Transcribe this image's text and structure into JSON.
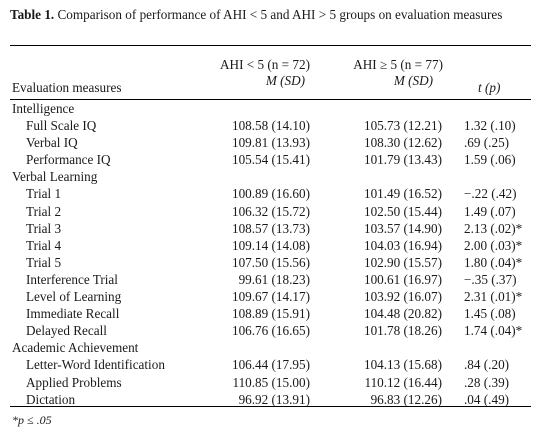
{
  "caption": {
    "label": "Table 1.",
    "text": "Comparison of performance of AHI < 5 and AHI > 5 groups on evaluation measures"
  },
  "header": {
    "col_measure": "Evaluation measures",
    "g1_title": "AHI < 5 (n = 72)",
    "g1_sub": "M (SD)",
    "g2_title": "AHI ≥ 5 (n = 77)",
    "g2_sub": "M (SD)",
    "t_col": "t (p)"
  },
  "rows": [
    {
      "kind": "section",
      "name": "Intelligence"
    },
    {
      "kind": "item",
      "name": "Full Scale IQ",
      "g1": "108.58 (14.10)",
      "g2": "105.73 (12.21)",
      "t": "1.32 (.10)"
    },
    {
      "kind": "item",
      "name": "Verbal IQ",
      "g1": "109.81 (13.93)",
      "g2": "108.30 (12.62)",
      "t": ".69 (.25)"
    },
    {
      "kind": "item",
      "name": "Performance IQ",
      "g1": "105.54 (15.41)",
      "g2": "101.79 (13.43)",
      "t": "1.59 (.06)"
    },
    {
      "kind": "section",
      "name": "Verbal Learning"
    },
    {
      "kind": "item",
      "name": "Trial 1",
      "g1": "100.89 (16.60)",
      "g2": "101.49 (16.52)",
      "t": "−.22 (.42)"
    },
    {
      "kind": "item",
      "name": "Trial 2",
      "g1": "106.32 (15.72)",
      "g2": "102.50 (15.44)",
      "t": "1.49 (.07)"
    },
    {
      "kind": "item",
      "name": "Trial 3",
      "g1": "108.57 (13.73)",
      "g2": "103.57 (14.90)",
      "t": "2.13 (.02)*"
    },
    {
      "kind": "item",
      "name": "Trial 4",
      "g1": "109.14 (14.08)",
      "g2": "104.03 (16.94)",
      "t": "2.00 (.03)*"
    },
    {
      "kind": "item",
      "name": "Trial 5",
      "g1": "107.50 (15.56)",
      "g2": "102.90 (15.57)",
      "t": "1.80 (.04)*"
    },
    {
      "kind": "item",
      "name": "Interference Trial",
      "g1": "99.61 (18.23)",
      "g2": "100.61 (16.97)",
      "t": "−.35 (.37)"
    },
    {
      "kind": "item",
      "name": "Level of Learning",
      "g1": "109.67 (14.17)",
      "g2": "103.92 (16.07)",
      "t": "2.31 (.01)*"
    },
    {
      "kind": "item",
      "name": "Immediate Recall",
      "g1": "108.89 (15.91)",
      "g2": "104.48 (20.82)",
      "t": "1.45 (.08)"
    },
    {
      "kind": "item",
      "name": "Delayed Recall",
      "g1": "106.76 (16.65)",
      "g2": "101.78 (18.26)",
      "t": "1.74 (.04)*"
    },
    {
      "kind": "section",
      "name": "Academic Achievement"
    },
    {
      "kind": "item",
      "name": "Letter-Word Identification",
      "g1": "106.44 (17.95)",
      "g2": "104.13 (15.68)",
      "t": ".84 (.20)"
    },
    {
      "kind": "item",
      "name": "Applied Problems",
      "g1": "110.85 (15.00)",
      "g2": "110.12 (16.44)",
      "t": ".28 (.39)"
    },
    {
      "kind": "item",
      "name": "Dictation",
      "g1": "96.92 (13.91)",
      "g2": "96.83 (12.26)",
      "t": ".04 (.49)"
    }
  ],
  "footnote": "*p ≤ .05"
}
